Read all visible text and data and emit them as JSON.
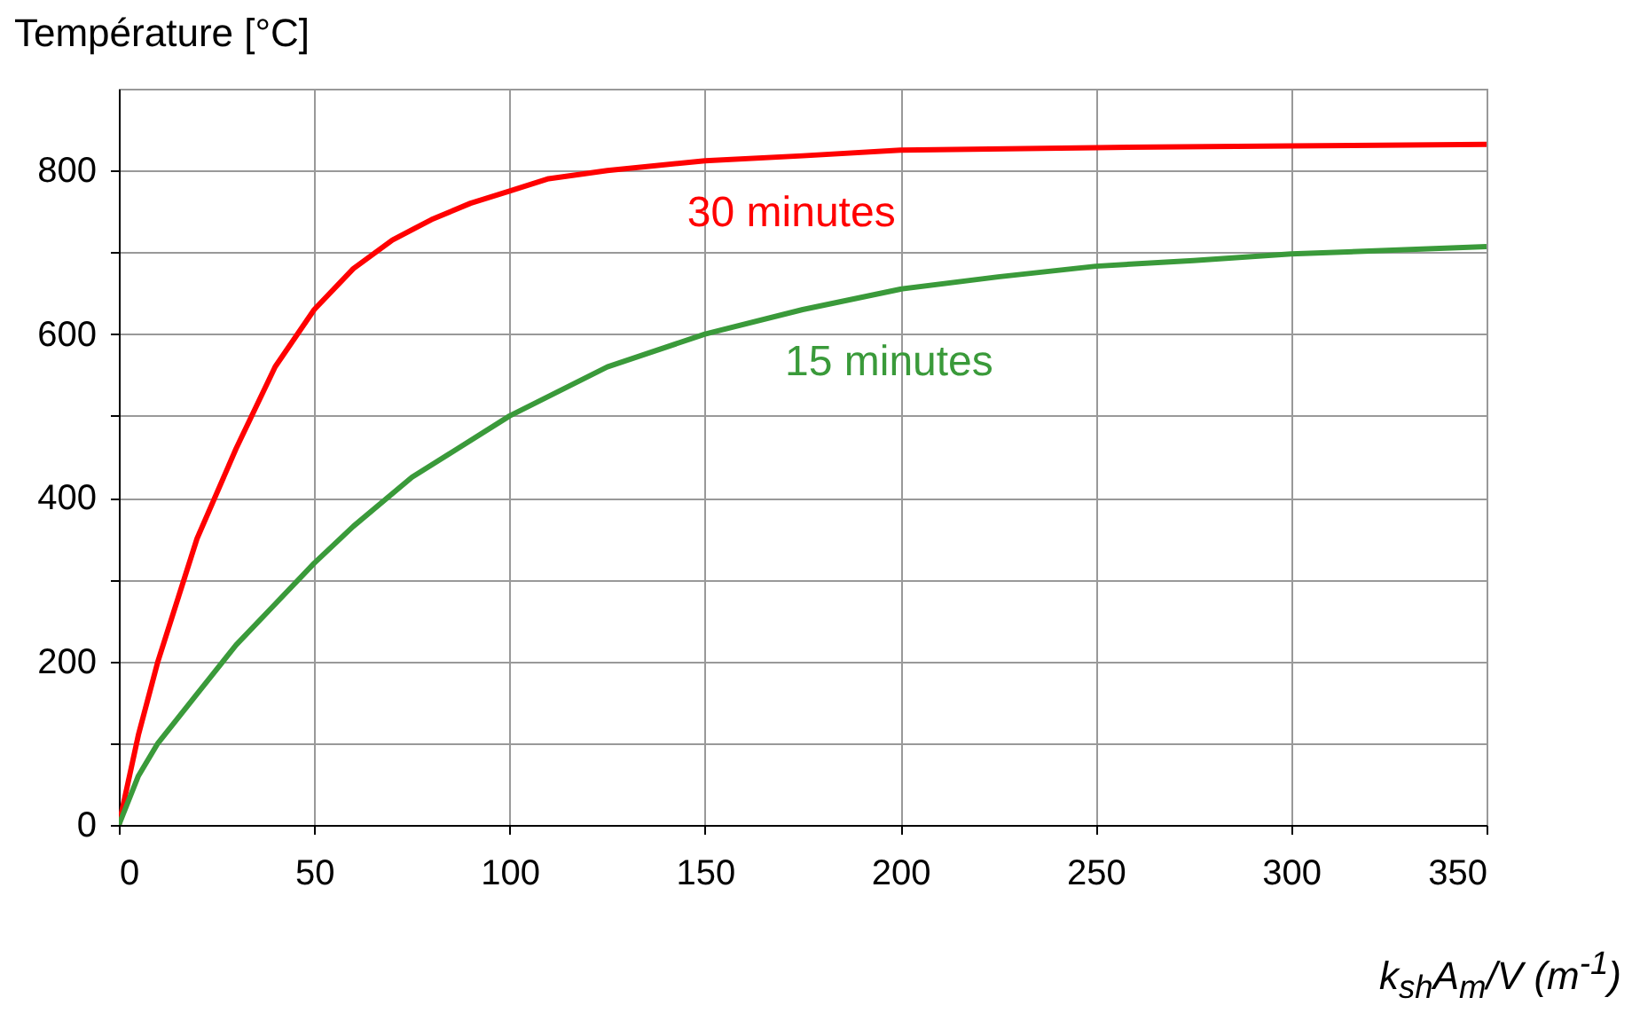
{
  "chart_data": {
    "type": "line",
    "ylabel": "Température [°C]",
    "xlabel": "k$_{sh}$A$_{m}$/V (m$^{-1}$)",
    "xlim": [
      0,
      350
    ],
    "xticks": [
      0,
      50,
      100,
      150,
      200,
      250,
      300,
      350
    ],
    "ylim": [
      0,
      900
    ],
    "yticks": [
      0,
      {
        "value": 100,
        "label": null
      },
      200,
      {
        "value": 300,
        "label": null
      },
      400,
      {
        "value": 500,
        "label": null
      },
      600,
      {
        "value": 700,
        "label": null
      },
      800
    ],
    "grid": true,
    "marker": "none",
    "line_style": "solid",
    "series": [
      {
        "name": "30 minutes",
        "color": "#ff0000",
        "x": [
          0,
          5,
          10,
          20,
          30,
          40,
          50,
          60,
          70,
          80,
          90,
          100,
          110,
          125,
          150,
          175,
          200,
          250,
          300,
          350
        ],
        "values": [
          0,
          110,
          200,
          350,
          460,
          560,
          630,
          680,
          715,
          740,
          760,
          775,
          790,
          800,
          812,
          818,
          825,
          828,
          830,
          832
        ]
      },
      {
        "name": "15 minutes",
        "color": "#3a9a3a",
        "x": [
          0,
          5,
          10,
          20,
          30,
          40,
          50,
          60,
          75,
          100,
          125,
          150,
          175,
          200,
          225,
          250,
          275,
          300,
          350
        ],
        "values": [
          0,
          60,
          100,
          160,
          220,
          270,
          320,
          365,
          425,
          500,
          560,
          600,
          630,
          655,
          670,
          683,
          690,
          698,
          707
        ]
      }
    ]
  }
}
